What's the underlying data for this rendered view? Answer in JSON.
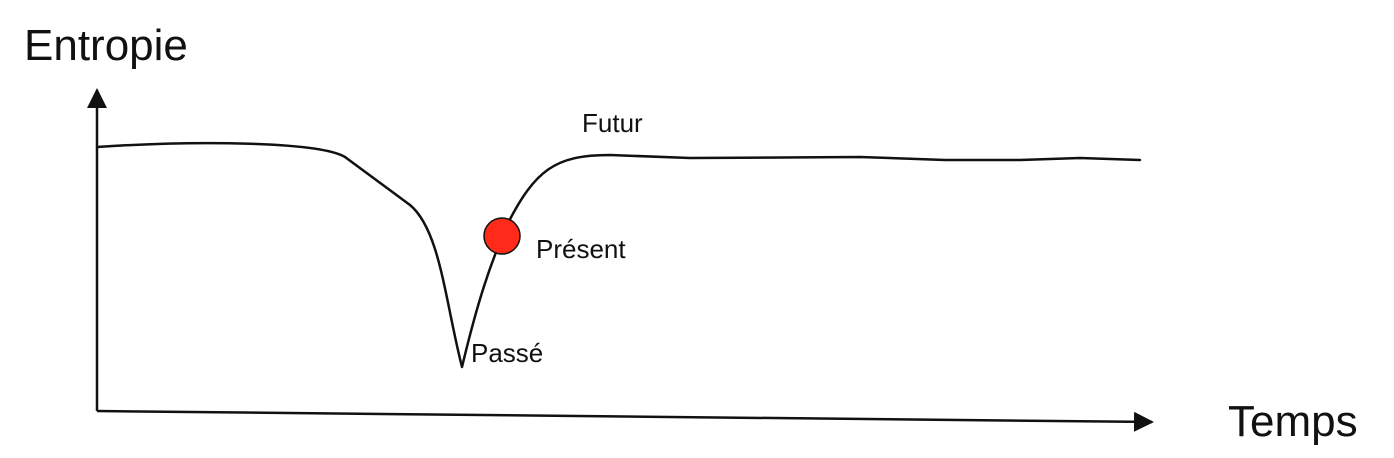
{
  "labels": {
    "y_axis": "Entropie",
    "x_axis": "Temps",
    "future": "Futur",
    "present": "Présent",
    "past": "Passé"
  },
  "colors": {
    "stroke": "#111111",
    "marker": "#ff2a1a",
    "background": "#ffffff"
  }
}
